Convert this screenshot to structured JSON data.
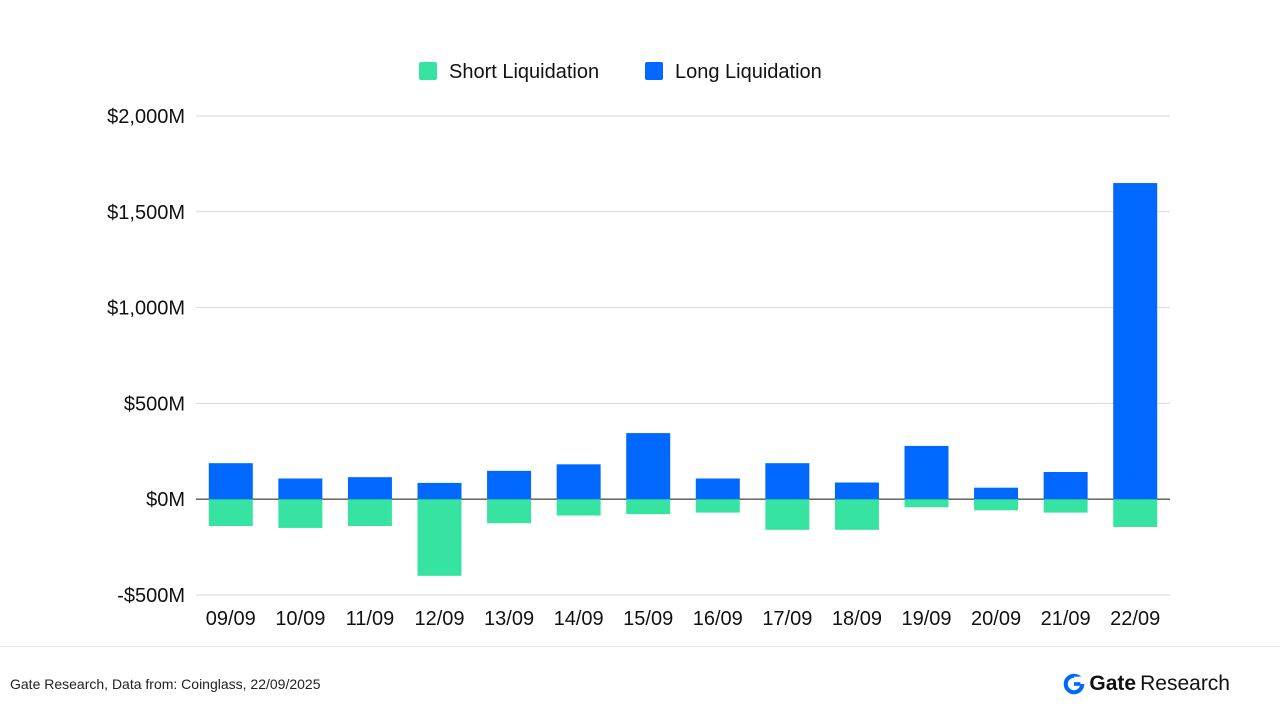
{
  "chart_data": {
    "type": "bar",
    "stacked": true,
    "categories": [
      "09/09",
      "10/09",
      "11/09",
      "12/09",
      "13/09",
      "14/09",
      "15/09",
      "16/09",
      "17/09",
      "18/09",
      "19/09",
      "20/09",
      "21/09",
      "22/09"
    ],
    "series": [
      {
        "name": "Short Liquidation",
        "color": "#37e3a0",
        "values": [
          -140,
          -150,
          -140,
          -400,
          -125,
          -85,
          -78,
          -70,
          -160,
          -160,
          -42,
          -58,
          -70,
          -145
        ]
      },
      {
        "name": "Long Liquidation",
        "color": "#0068ff",
        "values": [
          188,
          108,
          115,
          85,
          148,
          182,
          345,
          108,
          188,
          87,
          278,
          60,
          142,
          1650
        ]
      }
    ],
    "ylim": [
      -500,
      2000
    ],
    "yticks": [
      -500,
      0,
      500,
      1000,
      1500,
      2000
    ],
    "ytick_labels": [
      "-$500M",
      "$0M",
      "$500M",
      "$1,000M",
      "$1,500M",
      "$2,000M"
    ],
    "grid": true,
    "legend_position": "top-center",
    "gridline_color": "#d9d9d9",
    "zero_line_color": "#555555"
  },
  "footer": {
    "note": "Gate Research, Data from: Coinglass, 22/09/2025",
    "brand_name": "Gate",
    "brand_suffix": "Research",
    "brand_color": "#0068ff"
  }
}
